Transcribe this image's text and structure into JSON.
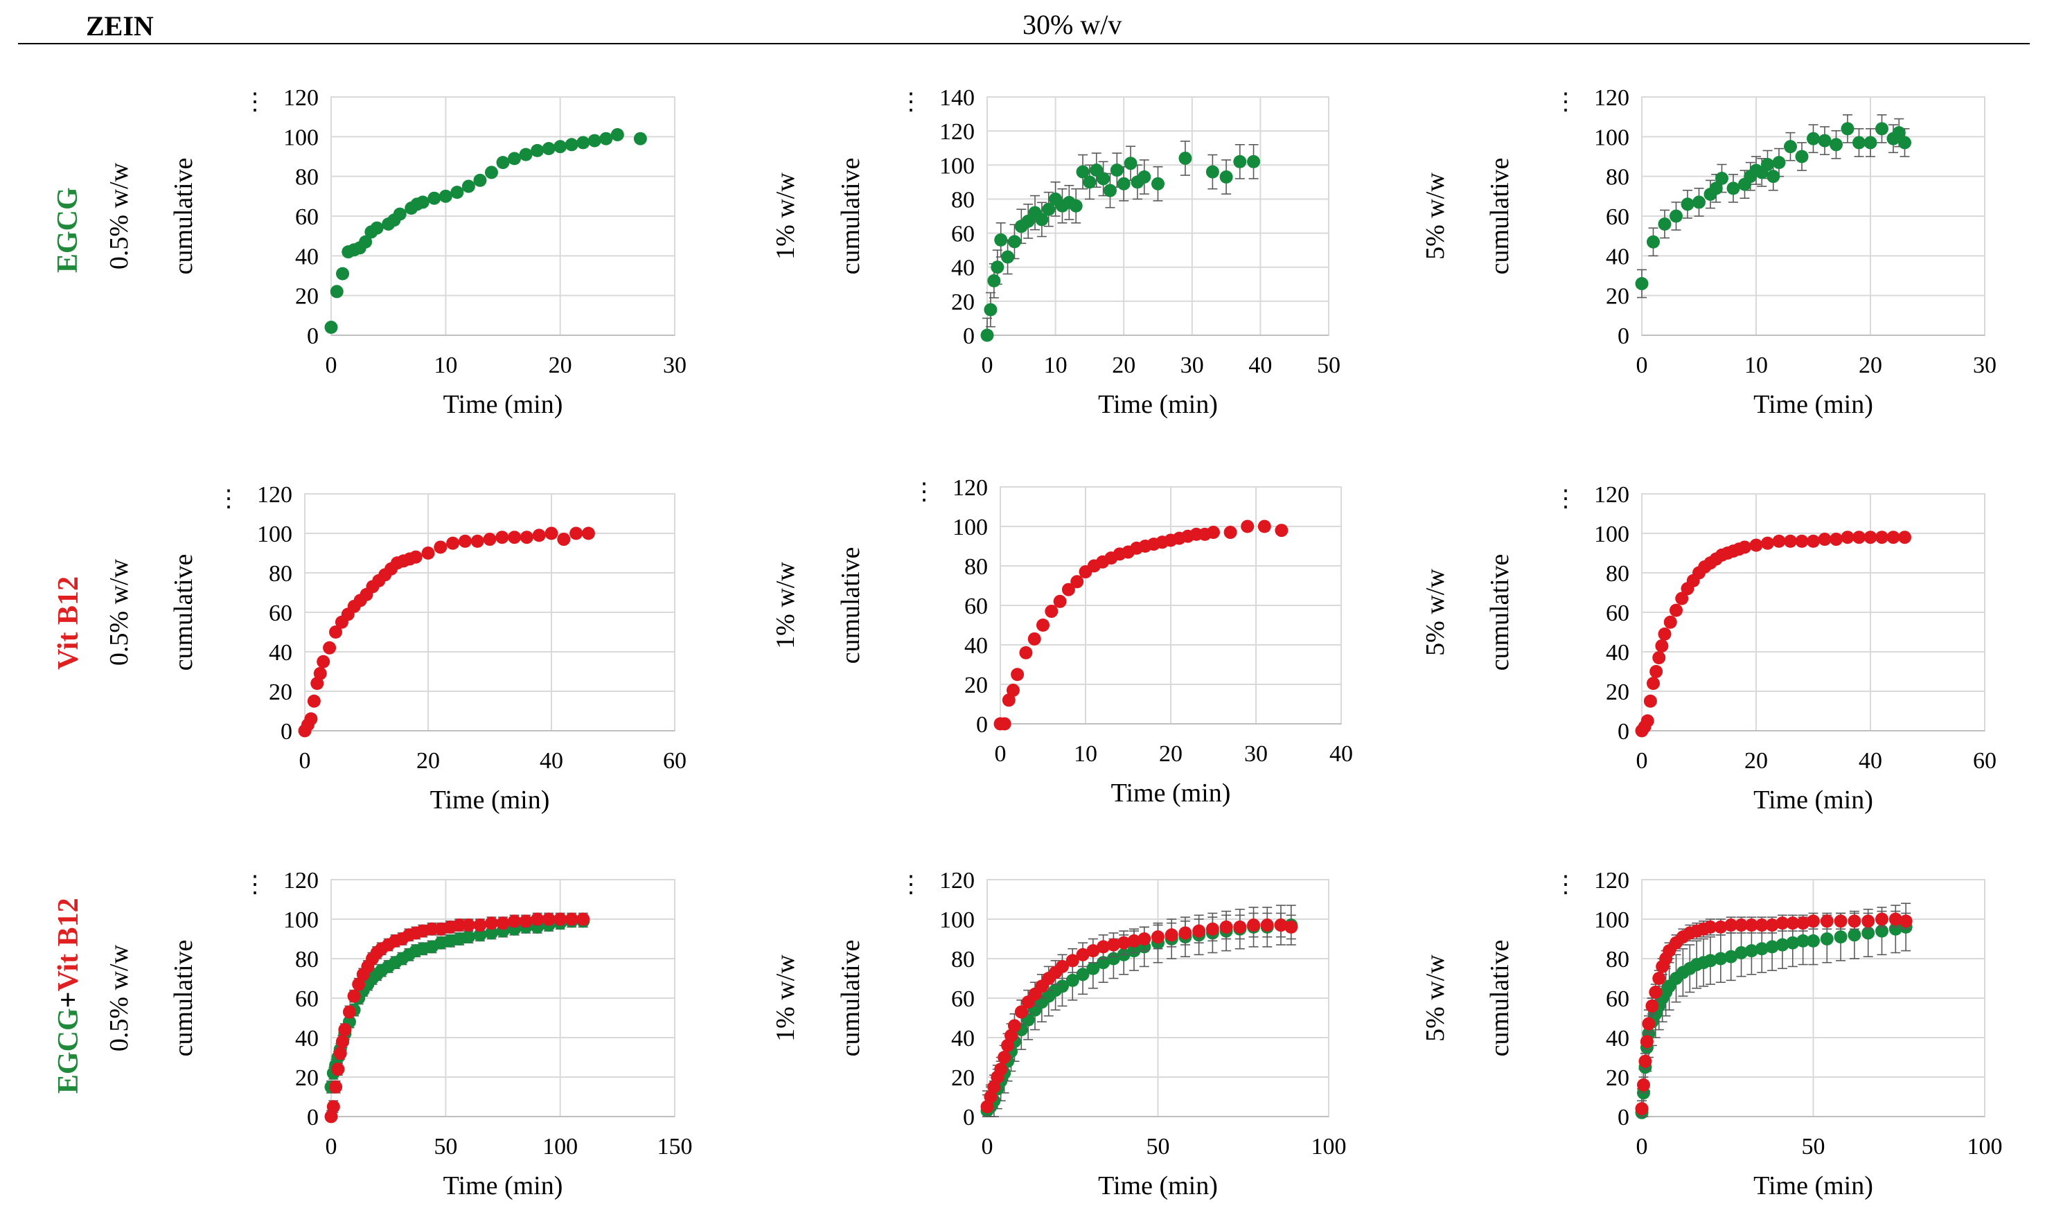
{
  "header": {
    "left": "ZEIN",
    "center": "30% w/v"
  },
  "rows": [
    {
      "label_parts": [
        {
          "text": "EGCG",
          "color": "#1e8a3a"
        }
      ]
    },
    {
      "label_parts": [
        {
          "text": "Vit B12",
          "color": "#e02020"
        }
      ]
    },
    {
      "label_parts": [
        {
          "text": "EGCG",
          "color": "#1e8a3a"
        },
        {
          "text": "+",
          "color": "#000000"
        },
        {
          "text": "Vit B12",
          "color": "#e02020"
        }
      ]
    }
  ],
  "colors": {
    "green": "#138a3c",
    "red": "#e0161e",
    "grid": "#d9d9d9",
    "axis": "#bfbfbf",
    "error_bar": "#595959"
  },
  "ylabel_word": "cumulative",
  "ylabel_prefix": "⋮",
  "xlabel": "Time (min)",
  "chart_data": [
    {
      "type": "scatter",
      "row": 0,
      "col": 0,
      "conc": "0.5% w/w",
      "xlabel": "Time (min)",
      "ylabel": "cumulative",
      "xlim": [
        0,
        30
      ],
      "ylim": [
        0,
        120
      ],
      "xticks": [
        0,
        10,
        20,
        30
      ],
      "yticks": [
        0,
        20,
        40,
        60,
        80,
        100,
        120
      ],
      "series": [
        {
          "name": "EGCG",
          "color": "green",
          "err": 2,
          "x": [
            0,
            0.5,
            1,
            1.5,
            2,
            2.5,
            3,
            3.5,
            4,
            5,
            5.5,
            6,
            7,
            7.5,
            8,
            9,
            10,
            11,
            12,
            13,
            14,
            15,
            16,
            17,
            18,
            19,
            20,
            21,
            22,
            23,
            24,
            25,
            27
          ],
          "y": [
            4,
            22,
            31,
            42,
            43,
            44,
            47,
            52,
            54,
            56,
            58,
            61,
            64,
            66,
            67,
            69,
            70,
            72,
            75,
            78,
            82,
            87,
            89,
            91,
            93,
            94,
            95,
            96,
            97,
            98,
            99,
            101,
            99
          ]
        }
      ]
    },
    {
      "type": "scatter",
      "row": 0,
      "col": 1,
      "conc": "1% w/w",
      "xlabel": "Time (min)",
      "ylabel": "cumulative",
      "xlim": [
        0,
        50
      ],
      "ylim": [
        0,
        140
      ],
      "xticks": [
        0,
        10,
        20,
        30,
        40,
        50
      ],
      "yticks": [
        0,
        20,
        40,
        60,
        80,
        100,
        120,
        140
      ],
      "series": [
        {
          "name": "EGCG",
          "color": "green",
          "err": 10,
          "x": [
            0,
            0.5,
            1,
            1.5,
            2,
            3,
            4,
            5,
            6,
            7,
            8,
            9,
            10,
            11,
            12,
            13,
            14,
            15,
            16,
            17,
            18,
            19,
            20,
            21,
            22,
            23,
            25,
            29,
            33,
            35,
            37,
            39
          ],
          "y": [
            0,
            15,
            32,
            40,
            56,
            46,
            55,
            64,
            67,
            72,
            68,
            74,
            80,
            76,
            78,
            76,
            96,
            90,
            97,
            92,
            85,
            97,
            89,
            101,
            90,
            93,
            89,
            104,
            96,
            93,
            102,
            102
          ]
        }
      ]
    },
    {
      "type": "scatter",
      "row": 0,
      "col": 2,
      "conc": "5% w/w",
      "xlabel": "Time (min)",
      "ylabel": "cumulative",
      "xlim": [
        0,
        30
      ],
      "ylim": [
        0,
        120
      ],
      "xticks": [
        0,
        10,
        20,
        30
      ],
      "yticks": [
        0,
        20,
        40,
        60,
        80,
        100,
        120
      ],
      "series": [
        {
          "name": "EGCG",
          "color": "green",
          "err": 7,
          "x": [
            0,
            1,
            2,
            3,
            4,
            5,
            6,
            6.5,
            7,
            8,
            9,
            9.5,
            10,
            10.5,
            11,
            11.5,
            12,
            13,
            14,
            15,
            16,
            17,
            18,
            19,
            20,
            21,
            22,
            22.5,
            23
          ],
          "y": [
            26,
            47,
            56,
            60,
            66,
            67,
            71,
            74,
            79,
            74,
            76,
            80,
            83,
            82,
            86,
            80,
            87,
            95,
            90,
            99,
            98,
            96,
            104,
            97,
            97,
            104,
            99,
            102,
            97
          ]
        }
      ]
    },
    {
      "type": "scatter",
      "row": 1,
      "col": 0,
      "conc": "0.5% w/w",
      "xlabel": "Time (min)",
      "ylabel": "cumulative",
      "xlim": [
        0,
        60
      ],
      "ylim": [
        0,
        120
      ],
      "xticks": [
        0,
        20,
        40,
        60
      ],
      "yticks": [
        0,
        20,
        40,
        60,
        80,
        100,
        120
      ],
      "series": [
        {
          "name": "Vit B12",
          "color": "red",
          "err": 2,
          "x": [
            0,
            0.5,
            1,
            1.5,
            2,
            2.5,
            3,
            4,
            5,
            6,
            7,
            8,
            9,
            10,
            11,
            12,
            13,
            14,
            15,
            16,
            17,
            18,
            20,
            22,
            24,
            26,
            28,
            30,
            32,
            34,
            36,
            38,
            40,
            42,
            44,
            46
          ],
          "y": [
            0,
            3,
            6,
            15,
            24,
            29,
            35,
            42,
            50,
            55,
            59,
            63,
            66,
            69,
            73,
            76,
            79,
            82,
            85,
            86,
            87,
            88,
            90,
            93,
            95,
            96,
            96,
            97,
            98,
            98,
            98,
            99,
            100,
            97,
            100,
            100
          ]
        }
      ]
    },
    {
      "type": "scatter",
      "row": 1,
      "col": 1,
      "conc": "1% w/w",
      "xlabel": "Time (min)",
      "ylabel": "cumulative",
      "xlim": [
        0,
        40
      ],
      "ylim": [
        0,
        120
      ],
      "xticks": [
        0,
        10,
        20,
        30,
        40
      ],
      "yticks": [
        0,
        20,
        40,
        60,
        80,
        100,
        120
      ],
      "series": [
        {
          "name": "Vit B12",
          "color": "red",
          "err": 2,
          "x": [
            0,
            0.5,
            1,
            1.5,
            2,
            3,
            4,
            5,
            6,
            7,
            8,
            9,
            10,
            11,
            12,
            13,
            14,
            15,
            16,
            17,
            18,
            19,
            20,
            21,
            22,
            23,
            24,
            25,
            27,
            29,
            31,
            33
          ],
          "y": [
            0,
            0,
            12,
            17,
            25,
            36,
            43,
            50,
            57,
            62,
            68,
            72,
            77,
            80,
            82,
            84,
            86,
            87,
            89,
            90,
            91,
            92,
            93,
            94,
            95,
            96,
            96,
            97,
            97,
            100,
            100,
            98
          ]
        }
      ]
    },
    {
      "type": "scatter",
      "row": 1,
      "col": 2,
      "conc": "5% w/w",
      "xlabel": "Time (min)",
      "ylabel": "cumulative",
      "xlim": [
        0,
        60
      ],
      "ylim": [
        0,
        120
      ],
      "xticks": [
        0,
        20,
        40,
        60
      ],
      "yticks": [
        0,
        20,
        40,
        60,
        80,
        100,
        120
      ],
      "series": [
        {
          "name": "Vit B12",
          "color": "red",
          "err": 2,
          "x": [
            0,
            0.5,
            1,
            1.5,
            2,
            2.5,
            3,
            3.5,
            4,
            5,
            6,
            7,
            8,
            9,
            10,
            11,
            12,
            13,
            14,
            15,
            16,
            17,
            18,
            20,
            22,
            24,
            26,
            28,
            30,
            32,
            34,
            36,
            38,
            40,
            42,
            44,
            46
          ],
          "y": [
            0,
            2,
            5,
            15,
            24,
            30,
            37,
            43,
            49,
            55,
            61,
            67,
            72,
            76,
            80,
            83,
            85,
            87,
            89,
            90,
            91,
            92,
            93,
            94,
            95,
            96,
            96,
            96,
            96,
            97,
            97,
            98,
            98,
            98,
            98,
            98,
            98
          ]
        }
      ]
    },
    {
      "type": "scatter",
      "row": 2,
      "col": 0,
      "conc": "0.5% w/w",
      "xlabel": "Time (min)",
      "ylabel": "cumulative",
      "xlim": [
        0,
        150
      ],
      "ylim": [
        0,
        120
      ],
      "xticks": [
        0,
        50,
        100,
        150
      ],
      "yticks": [
        0,
        20,
        40,
        60,
        80,
        100,
        120
      ],
      "series": [
        {
          "name": "EGCG",
          "color": "green",
          "err": 3,
          "x": [
            0,
            1,
            2,
            3,
            4,
            5,
            6,
            8,
            10,
            12,
            14,
            16,
            18,
            20,
            22,
            25,
            28,
            31,
            34,
            37,
            40,
            44,
            48,
            52,
            56,
            60,
            65,
            70,
            75,
            80,
            85,
            90,
            95,
            100,
            105,
            110
          ],
          "y": [
            15,
            22,
            26,
            30,
            34,
            38,
            42,
            48,
            54,
            60,
            64,
            67,
            70,
            72,
            74,
            76,
            78,
            80,
            82,
            84,
            85,
            86,
            88,
            89,
            90,
            91,
            92,
            93,
            94,
            95,
            96,
            96,
            97,
            98,
            99,
            99
          ]
        },
        {
          "name": "Vit B12",
          "color": "red",
          "err": 3,
          "x": [
            0,
            1,
            2,
            3,
            4,
            5,
            6,
            8,
            10,
            12,
            14,
            16,
            18,
            20,
            22,
            25,
            28,
            31,
            34,
            37,
            40,
            44,
            48,
            52,
            56,
            60,
            65,
            70,
            75,
            80,
            85,
            90,
            95,
            100,
            105,
            110
          ],
          "y": [
            0,
            5,
            15,
            24,
            32,
            38,
            44,
            53,
            61,
            67,
            72,
            76,
            80,
            83,
            85,
            87,
            89,
            90,
            92,
            93,
            94,
            95,
            95,
            96,
            97,
            97,
            97,
            98,
            98,
            99,
            99,
            100,
            100,
            100,
            100,
            100
          ]
        }
      ]
    },
    {
      "type": "scatter",
      "row": 2,
      "col": 1,
      "conc": "1% w/w",
      "xlabel": "Time (min)",
      "ylabel": "cumulative",
      "xlim": [
        0,
        100
      ],
      "ylim": [
        0,
        120
      ],
      "xticks": [
        0,
        50,
        100
      ],
      "yticks": [
        0,
        20,
        40,
        60,
        80,
        100,
        120
      ],
      "series": [
        {
          "name": "EGCG",
          "color": "green",
          "err": 10,
          "x": [
            0,
            1,
            2,
            3,
            4,
            5,
            6,
            7,
            8,
            10,
            12,
            14,
            16,
            18,
            20,
            22,
            25,
            28,
            31,
            34,
            37,
            40,
            43,
            46,
            50,
            54,
            58,
            62,
            66,
            70,
            74,
            78,
            82,
            86,
            89
          ],
          "y": [
            3,
            5,
            8,
            14,
            18,
            22,
            28,
            33,
            38,
            44,
            49,
            54,
            58,
            61,
            64,
            66,
            69,
            72,
            75,
            78,
            80,
            82,
            84,
            86,
            88,
            90,
            91,
            92,
            93,
            94,
            95,
            96,
            96,
            97,
            97
          ]
        },
        {
          "name": "Vit B12",
          "color": "red",
          "err": 6,
          "x": [
            0,
            1,
            2,
            3,
            4,
            5,
            6,
            7,
            8,
            10,
            12,
            14,
            16,
            18,
            20,
            22,
            25,
            28,
            31,
            34,
            37,
            40,
            43,
            46,
            50,
            54,
            58,
            62,
            66,
            70,
            74,
            78,
            82,
            86,
            89
          ],
          "y": [
            5,
            10,
            15,
            20,
            24,
            30,
            36,
            41,
            46,
            53,
            58,
            62,
            66,
            70,
            73,
            76,
            79,
            82,
            84,
            86,
            87,
            88,
            89,
            90,
            91,
            92,
            93,
            94,
            95,
            96,
            96,
            97,
            97,
            97,
            96
          ]
        }
      ]
    },
    {
      "type": "scatter",
      "row": 2,
      "col": 2,
      "conc": "5% w/w",
      "xlabel": "Time (min)",
      "ylabel": "cumulative",
      "xlim": [
        0,
        100
      ],
      "ylim": [
        0,
        120
      ],
      "xticks": [
        0,
        50,
        100
      ],
      "yticks": [
        0,
        20,
        40,
        60,
        80,
        100,
        120
      ],
      "series": [
        {
          "name": "EGCG",
          "color": "green",
          "err": 12,
          "x": [
            0,
            0.5,
            1,
            1.5,
            2,
            3,
            4,
            5,
            6,
            7,
            8,
            10,
            12,
            14,
            16,
            18,
            20,
            23,
            26,
            29,
            32,
            35,
            38,
            41,
            44,
            47,
            50,
            54,
            58,
            62,
            66,
            70,
            74,
            77
          ],
          "y": [
            2,
            12,
            25,
            35,
            42,
            48,
            52,
            56,
            60,
            63,
            66,
            70,
            73,
            75,
            77,
            78,
            79,
            80,
            81,
            83,
            84,
            85,
            86,
            87,
            88,
            89,
            89,
            90,
            91,
            92,
            93,
            94,
            95,
            96
          ]
        },
        {
          "name": "Vit B12",
          "color": "red",
          "err": 4,
          "x": [
            0,
            0.5,
            1,
            1.5,
            2,
            3,
            4,
            5,
            6,
            7,
            8,
            10,
            12,
            14,
            16,
            18,
            20,
            23,
            26,
            29,
            32,
            35,
            38,
            41,
            44,
            47,
            50,
            54,
            58,
            62,
            66,
            70,
            74,
            77
          ],
          "y": [
            4,
            16,
            28,
            38,
            47,
            56,
            63,
            70,
            76,
            80,
            84,
            88,
            91,
            93,
            94,
            95,
            96,
            96,
            97,
            97,
            97,
            97,
            97,
            98,
            98,
            98,
            99,
            99,
            99,
            99,
            99,
            100,
            100,
            99
          ]
        }
      ]
    }
  ]
}
